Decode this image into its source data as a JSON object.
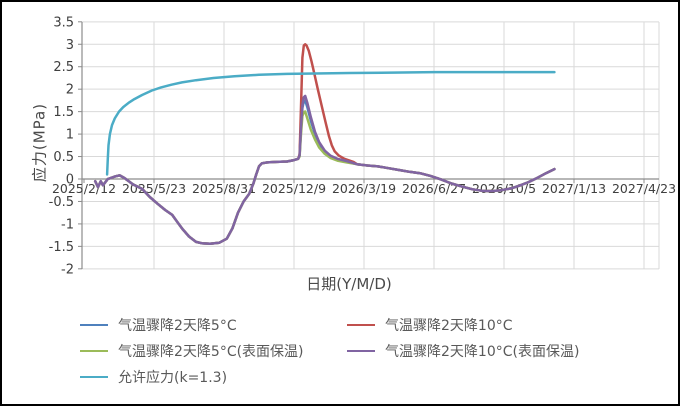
{
  "chart_data": {
    "type": "line",
    "title": "",
    "xlabel": "日期(Y/M/D)",
    "ylabel": "应力(MPa)",
    "ylim": [
      -2,
      3.5
    ],
    "y_tick_step": 0.5,
    "y_ticks": [
      "3.5",
      "3",
      "2.5",
      "2",
      "1.5",
      "1",
      "0.5",
      "0",
      "-0.5",
      "-1",
      "-1.5",
      "-2"
    ],
    "y_tick_values": [
      3.5,
      3,
      2.5,
      2,
      1.5,
      1,
      0.5,
      0,
      -0.5,
      -1,
      -1.5,
      -2
    ],
    "x_tick_labels": [
      "2025/2/12",
      "2025/5/23",
      "2025/8/31",
      "2025/12/9",
      "2026/3/19",
      "2026/6/27",
      "2026/10/5",
      "2027/1/13",
      "2027/4/23"
    ],
    "x_tick_days": [
      0,
      100,
      200,
      300,
      400,
      500,
      600,
      700,
      800
    ],
    "x_unit": "days since 2025/2/12",
    "grid": true,
    "legend_position": "bottom",
    "series": [
      {
        "name": "气温骤降2天降5°C",
        "color": "#4F81BD",
        "points": [
          [
            16,
            -0.05
          ],
          [
            20,
            -0.18
          ],
          [
            24,
            -0.05
          ],
          [
            27,
            -0.14
          ],
          [
            34,
            0
          ],
          [
            45,
            0.06
          ],
          [
            51,
            0.08
          ],
          [
            58,
            0.02
          ],
          [
            70,
            -0.12
          ],
          [
            83,
            -0.22
          ],
          [
            94,
            -0.4
          ],
          [
            105,
            -0.55
          ],
          [
            116,
            -0.69
          ],
          [
            126,
            -0.8
          ],
          [
            133,
            -0.95
          ],
          [
            140,
            -1.1
          ],
          [
            150,
            -1.28
          ],
          [
            160,
            -1.4
          ],
          [
            168,
            -1.43
          ],
          [
            180,
            -1.44
          ],
          [
            193,
            -1.42
          ],
          [
            204,
            -1.33
          ],
          [
            212,
            -1.1
          ],
          [
            220,
            -0.75
          ],
          [
            228,
            -0.5
          ],
          [
            236,
            -0.33
          ],
          [
            242,
            -0.1
          ],
          [
            246,
            0.1
          ],
          [
            250,
            0.28
          ],
          [
            254,
            0.35
          ],
          [
            262,
            0.37
          ],
          [
            275,
            0.38
          ],
          [
            290,
            0.39
          ],
          [
            300,
            0.42
          ],
          [
            306,
            0.45
          ],
          [
            308,
            0.52
          ],
          [
            310,
            1.1
          ],
          [
            312,
            1.58
          ],
          [
            314,
            1.73
          ],
          [
            316,
            1.75
          ],
          [
            319,
            1.6
          ],
          [
            324,
            1.3
          ],
          [
            330,
            1
          ],
          [
            336,
            0.78
          ],
          [
            344,
            0.6
          ],
          [
            352,
            0.5
          ],
          [
            362,
            0.43
          ],
          [
            375,
            0.38
          ],
          [
            390,
            0.33
          ],
          [
            405,
            0.3
          ],
          [
            420,
            0.28
          ],
          [
            435,
            0.24
          ],
          [
            450,
            0.2
          ],
          [
            465,
            0.16
          ],
          [
            480,
            0.13
          ],
          [
            495,
            0.07
          ],
          [
            510,
            -0.01
          ],
          [
            525,
            -0.1
          ],
          [
            540,
            -0.17
          ],
          [
            555,
            -0.23
          ],
          [
            568,
            -0.26
          ],
          [
            582,
            -0.27
          ],
          [
            596,
            -0.25
          ],
          [
            610,
            -0.21
          ],
          [
            622,
            -0.15
          ],
          [
            635,
            -0.07
          ],
          [
            648,
            0.03
          ],
          [
            660,
            0.13
          ],
          [
            672,
            0.22
          ]
        ]
      },
      {
        "name": "气温骤降2天降10°C",
        "color": "#C0504D",
        "points": [
          [
            16,
            -0.05
          ],
          [
            20,
            -0.18
          ],
          [
            24,
            -0.05
          ],
          [
            27,
            -0.14
          ],
          [
            34,
            0
          ],
          [
            45,
            0.06
          ],
          [
            51,
            0.08
          ],
          [
            58,
            0.02
          ],
          [
            70,
            -0.12
          ],
          [
            83,
            -0.22
          ],
          [
            94,
            -0.4
          ],
          [
            105,
            -0.55
          ],
          [
            116,
            -0.69
          ],
          [
            126,
            -0.8
          ],
          [
            133,
            -0.95
          ],
          [
            140,
            -1.1
          ],
          [
            150,
            -1.28
          ],
          [
            160,
            -1.4
          ],
          [
            168,
            -1.43
          ],
          [
            180,
            -1.44
          ],
          [
            193,
            -1.42
          ],
          [
            204,
            -1.33
          ],
          [
            212,
            -1.1
          ],
          [
            220,
            -0.75
          ],
          [
            228,
            -0.5
          ],
          [
            236,
            -0.33
          ],
          [
            242,
            -0.1
          ],
          [
            246,
            0.1
          ],
          [
            250,
            0.28
          ],
          [
            254,
            0.35
          ],
          [
            262,
            0.37
          ],
          [
            275,
            0.38
          ],
          [
            290,
            0.39
          ],
          [
            300,
            0.42
          ],
          [
            306,
            0.45
          ],
          [
            308,
            0.55
          ],
          [
            310,
            1.6
          ],
          [
            312,
            2.7
          ],
          [
            314,
            2.97
          ],
          [
            316,
            3
          ],
          [
            318,
            2.97
          ],
          [
            321,
            2.86
          ],
          [
            325,
            2.62
          ],
          [
            329,
            2.35
          ],
          [
            334,
            2
          ],
          [
            340,
            1.6
          ],
          [
            345,
            1.27
          ],
          [
            350,
            0.95
          ],
          [
            354,
            0.75
          ],
          [
            358,
            0.62
          ],
          [
            364,
            0.52
          ],
          [
            372,
            0.45
          ],
          [
            385,
            0.38
          ],
          [
            390,
            0.33
          ],
          [
            405,
            0.3
          ],
          [
            420,
            0.28
          ],
          [
            435,
            0.24
          ],
          [
            450,
            0.2
          ],
          [
            465,
            0.16
          ],
          [
            480,
            0.13
          ],
          [
            495,
            0.07
          ],
          [
            510,
            -0.01
          ],
          [
            525,
            -0.1
          ],
          [
            540,
            -0.17
          ],
          [
            555,
            -0.23
          ],
          [
            568,
            -0.26
          ],
          [
            582,
            -0.27
          ],
          [
            596,
            -0.25
          ],
          [
            610,
            -0.21
          ],
          [
            622,
            -0.15
          ],
          [
            635,
            -0.07
          ],
          [
            648,
            0.03
          ],
          [
            660,
            0.13
          ],
          [
            672,
            0.22
          ]
        ]
      },
      {
        "name": "气温骤降2天降5°C(表面保温)",
        "color": "#9BBB59",
        "points": [
          [
            16,
            -0.05
          ],
          [
            20,
            -0.18
          ],
          [
            24,
            -0.05
          ],
          [
            27,
            -0.14
          ],
          [
            34,
            0
          ],
          [
            45,
            0.06
          ],
          [
            51,
            0.08
          ],
          [
            58,
            0.02
          ],
          [
            70,
            -0.12
          ],
          [
            83,
            -0.22
          ],
          [
            94,
            -0.4
          ],
          [
            105,
            -0.55
          ],
          [
            116,
            -0.69
          ],
          [
            126,
            -0.8
          ],
          [
            133,
            -0.95
          ],
          [
            140,
            -1.1
          ],
          [
            150,
            -1.28
          ],
          [
            160,
            -1.4
          ],
          [
            168,
            -1.43
          ],
          [
            180,
            -1.44
          ],
          [
            193,
            -1.42
          ],
          [
            204,
            -1.33
          ],
          [
            212,
            -1.1
          ],
          [
            220,
            -0.75
          ],
          [
            228,
            -0.5
          ],
          [
            236,
            -0.33
          ],
          [
            242,
            -0.1
          ],
          [
            246,
            0.1
          ],
          [
            250,
            0.28
          ],
          [
            254,
            0.35
          ],
          [
            262,
            0.37
          ],
          [
            275,
            0.38
          ],
          [
            290,
            0.39
          ],
          [
            300,
            0.42
          ],
          [
            306,
            0.45
          ],
          [
            308,
            0.5
          ],
          [
            310,
            1
          ],
          [
            312,
            1.4
          ],
          [
            314,
            1.49
          ],
          [
            316,
            1.5
          ],
          [
            319,
            1.35
          ],
          [
            324,
            1.1
          ],
          [
            330,
            0.88
          ],
          [
            336,
            0.7
          ],
          [
            344,
            0.56
          ],
          [
            352,
            0.47
          ],
          [
            362,
            0.41
          ],
          [
            375,
            0.37
          ],
          [
            390,
            0.33
          ],
          [
            405,
            0.3
          ],
          [
            420,
            0.28
          ],
          [
            435,
            0.24
          ],
          [
            450,
            0.2
          ],
          [
            465,
            0.16
          ],
          [
            480,
            0.13
          ],
          [
            495,
            0.07
          ],
          [
            510,
            -0.01
          ],
          [
            525,
            -0.1
          ],
          [
            540,
            -0.17
          ],
          [
            555,
            -0.23
          ],
          [
            568,
            -0.26
          ],
          [
            582,
            -0.27
          ],
          [
            596,
            -0.25
          ],
          [
            610,
            -0.21
          ],
          [
            622,
            -0.15
          ],
          [
            635,
            -0.07
          ],
          [
            648,
            0.03
          ],
          [
            660,
            0.13
          ],
          [
            672,
            0.22
          ]
        ]
      },
      {
        "name": "气温骤降2天降10°C(表面保温)",
        "color": "#8064A2",
        "points": [
          [
            16,
            -0.05
          ],
          [
            20,
            -0.18
          ],
          [
            24,
            -0.05
          ],
          [
            27,
            -0.14
          ],
          [
            34,
            0
          ],
          [
            45,
            0.06
          ],
          [
            51,
            0.08
          ],
          [
            58,
            0.02
          ],
          [
            70,
            -0.12
          ],
          [
            83,
            -0.22
          ],
          [
            94,
            -0.4
          ],
          [
            105,
            -0.55
          ],
          [
            116,
            -0.69
          ],
          [
            126,
            -0.8
          ],
          [
            133,
            -0.95
          ],
          [
            140,
            -1.1
          ],
          [
            150,
            -1.28
          ],
          [
            160,
            -1.4
          ],
          [
            168,
            -1.43
          ],
          [
            180,
            -1.44
          ],
          [
            193,
            -1.42
          ],
          [
            204,
            -1.33
          ],
          [
            212,
            -1.1
          ],
          [
            220,
            -0.75
          ],
          [
            228,
            -0.5
          ],
          [
            236,
            -0.33
          ],
          [
            242,
            -0.1
          ],
          [
            246,
            0.1
          ],
          [
            250,
            0.28
          ],
          [
            254,
            0.35
          ],
          [
            262,
            0.37
          ],
          [
            275,
            0.38
          ],
          [
            290,
            0.39
          ],
          [
            300,
            0.42
          ],
          [
            306,
            0.45
          ],
          [
            308,
            0.53
          ],
          [
            310,
            1.15
          ],
          [
            312,
            1.64
          ],
          [
            314,
            1.82
          ],
          [
            316,
            1.85
          ],
          [
            319,
            1.7
          ],
          [
            324,
            1.38
          ],
          [
            330,
            1.05
          ],
          [
            336,
            0.82
          ],
          [
            344,
            0.63
          ],
          [
            352,
            0.52
          ],
          [
            362,
            0.45
          ],
          [
            375,
            0.4
          ],
          [
            390,
            0.33
          ],
          [
            405,
            0.3
          ],
          [
            420,
            0.28
          ],
          [
            435,
            0.24
          ],
          [
            450,
            0.2
          ],
          [
            465,
            0.16
          ],
          [
            480,
            0.13
          ],
          [
            495,
            0.07
          ],
          [
            510,
            -0.01
          ],
          [
            525,
            -0.1
          ],
          [
            540,
            -0.17
          ],
          [
            555,
            -0.23
          ],
          [
            568,
            -0.26
          ],
          [
            582,
            -0.27
          ],
          [
            596,
            -0.25
          ],
          [
            610,
            -0.21
          ],
          [
            622,
            -0.15
          ],
          [
            635,
            -0.07
          ],
          [
            648,
            0.03
          ],
          [
            660,
            0.13
          ],
          [
            672,
            0.22
          ]
        ]
      },
      {
        "name": "允许应力(k=1.3)",
        "color": "#4BACC6",
        "points": [
          [
            33,
            0.1
          ],
          [
            34,
            0.45
          ],
          [
            35,
            0.75
          ],
          [
            37,
            1
          ],
          [
            40,
            1.2
          ],
          [
            44,
            1.35
          ],
          [
            50,
            1.5
          ],
          [
            56,
            1.6
          ],
          [
            64,
            1.7
          ],
          [
            72,
            1.78
          ],
          [
            83,
            1.87
          ],
          [
            97,
            1.97
          ],
          [
            110,
            2.04
          ],
          [
            125,
            2.1
          ],
          [
            140,
            2.15
          ],
          [
            160,
            2.2
          ],
          [
            185,
            2.25
          ],
          [
            215,
            2.29
          ],
          [
            250,
            2.32
          ],
          [
            290,
            2.34
          ],
          [
            330,
            2.35
          ],
          [
            380,
            2.36
          ],
          [
            440,
            2.37
          ],
          [
            500,
            2.38
          ],
          [
            560,
            2.38
          ],
          [
            620,
            2.38
          ],
          [
            672,
            2.38
          ]
        ]
      }
    ],
    "colors": {
      "gridline": "#D9D9D9",
      "axis_line": "#8C8C8C",
      "tick_label": "#3F3F3F",
      "axis_title": "#4A4A4A",
      "legend_text": "#595959",
      "frame_border": "#000000",
      "background": "#FFFFFF"
    }
  }
}
